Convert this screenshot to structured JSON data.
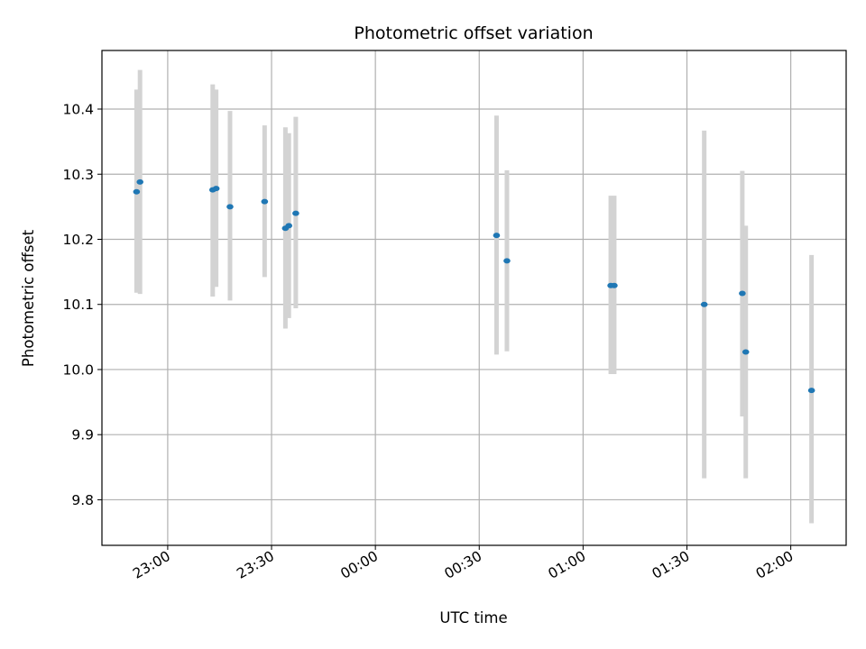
{
  "chart_data": {
    "type": "scatter",
    "title": "Photometric offset variation",
    "xlabel": "UTC time",
    "ylabel": "Photometric offset",
    "x_ticks": [
      "23:00",
      "23:30",
      "00:00",
      "00:30",
      "01:00",
      "01:30",
      "02:00"
    ],
    "y_ticks": [
      "9.8",
      "9.9",
      "10.0",
      "10.1",
      "10.2",
      "10.3",
      "10.4"
    ],
    "xlim_minutes_from_2300": [
      -19,
      196
    ],
    "ylim": [
      9.73,
      10.49
    ],
    "grid": true,
    "legend": "none",
    "point_color": "#1f77b4",
    "errorbar_color": "#d3d3d3",
    "series": [
      {
        "points": [
          {
            "t": "22:51",
            "y": 10.273,
            "lo": 10.118,
            "hi": 10.43
          },
          {
            "t": "22:52",
            "y": 10.288,
            "lo": 10.116,
            "hi": 10.46
          },
          {
            "t": "23:13",
            "y": 10.276,
            "lo": 10.112,
            "hi": 10.438
          },
          {
            "t": "23:14",
            "y": 10.278,
            "lo": 10.127,
            "hi": 10.43
          },
          {
            "t": "23:18",
            "y": 10.25,
            "lo": 10.106,
            "hi": 10.397
          },
          {
            "t": "23:28",
            "y": 10.258,
            "lo": 10.142,
            "hi": 10.375
          },
          {
            "t": "23:34",
            "y": 10.217,
            "lo": 10.063,
            "hi": 10.372
          },
          {
            "t": "23:35",
            "y": 10.221,
            "lo": 10.079,
            "hi": 10.363
          },
          {
            "t": "23:37",
            "y": 10.24,
            "lo": 10.094,
            "hi": 10.388
          },
          {
            "t": "00:35",
            "y": 10.206,
            "lo": 10.023,
            "hi": 10.39
          },
          {
            "t": "00:38",
            "y": 10.167,
            "lo": 10.028,
            "hi": 10.306
          },
          {
            "t": "01:08",
            "y": 10.129,
            "lo": 9.993,
            "hi": 10.267
          },
          {
            "t": "01:09",
            "y": 10.129,
            "lo": 9.993,
            "hi": 10.267
          },
          {
            "t": "01:35",
            "y": 10.1,
            "lo": 9.833,
            "hi": 10.367
          },
          {
            "t": "01:46",
            "y": 10.117,
            "lo": 9.928,
            "hi": 10.305
          },
          {
            "t": "01:47",
            "y": 10.027,
            "lo": 9.833,
            "hi": 10.221
          },
          {
            "t": "02:06",
            "y": 9.968,
            "lo": 9.764,
            "hi": 10.176
          }
        ]
      }
    ]
  }
}
